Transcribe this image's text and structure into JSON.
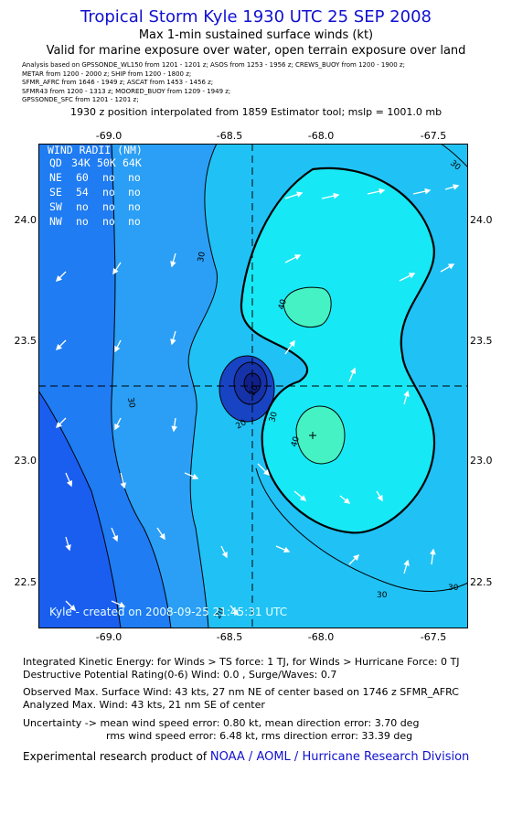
{
  "header": {
    "title": "Tropical Storm Kyle 1930 UTC 25 SEP 2008",
    "subtitle1": "Max 1-min sustained surface winds (kt)",
    "subtitle2": "Valid for marine exposure over water, open terrain exposure over land",
    "sources": [
      "Analysis based on  GPSSONDE_WL150 from 1201 - 1201 z;  ASOS from 1253 - 1956 z;  CREWS_BUOY from 1200 - 1900 z;",
      "METAR from 1200 - 2000 z;  SHIP from 1200 - 1800 z;",
      "SFMR_AFRC from 1646 - 1949 z;  ASCAT from 1453 - 1456 z;",
      "SFMR43 from 1200 - 1313 z;  MOORED_BUOY from 1209 - 1949 z;",
      "GPSSONDE_SFC from 1201 - 1201 z;"
    ],
    "interp_note": "1930 z position interpolated from 1859 Estimator tool; mslp = 1001.0 mb"
  },
  "map": {
    "lon_ticks": [
      "-69.0",
      "-68.5",
      "-68.0",
      "-67.5"
    ],
    "lat_ticks": [
      "24.0",
      "23.5",
      "23.0",
      "22.5"
    ],
    "lon_range": [
      -69.3,
      -67.45
    ],
    "lat_range": [
      22.3,
      24.3
    ],
    "center": {
      "lon": -68.35,
      "lat": 23.32
    },
    "wind_radii": {
      "header": [
        "QD",
        "34K",
        "50K",
        "64K"
      ],
      "title": "WIND RADII (NM)",
      "rows": [
        [
          "NE",
          "60",
          "no",
          "no"
        ],
        [
          "SE",
          "54",
          "no",
          "no"
        ],
        [
          "SW",
          "no",
          "no",
          "no"
        ],
        [
          "NW",
          "no",
          "no",
          "no"
        ]
      ]
    },
    "contour_labels": [
      "30",
      "30",
      "40",
      "40",
      "30",
      "20",
      "20",
      "30",
      "30",
      "30",
      "20"
    ],
    "credit": "Kyle - created on 2008-09-25 21:45:31 UTC",
    "colors": {
      "lt10": "#1a5ef0",
      "c10_20": "#1f7cf2",
      "c20_30": "#2b9ff5",
      "c30_34": "#20c2f5",
      "c34_40": "#17e8f5",
      "gt40": "#45f2c3",
      "core1": "#1844c4",
      "core2": "#1532a8",
      "core3": "#10208a"
    }
  },
  "info": {
    "ike": "Integrated Kinetic Energy:  for Winds > TS force: 1 TJ,  for Winds > Hurricane Force: 0 TJ",
    "dpr": "Destructive Potential Rating(0-6)   Wind: 0.0 , Surge/Waves: 0.7",
    "obs": "Observed Max. Surface Wind: 43 kts, 27 nm NE of center based on 1746 z SFMR_AFRC",
    "analyzed": "Analyzed Max. Wind: 43 kts, 21 nm SE of center",
    "uncert1": "Uncertainty -> mean wind speed error: 0.80 kt,   mean direction error: 3.70 deg",
    "uncert2": "rms wind speed error: 6.48 kt,   rms direction error: 33.39 deg"
  },
  "footer": {
    "prefix": "Experimental research product of ",
    "link": "NOAA / AOML / Hurricane Research Division"
  }
}
